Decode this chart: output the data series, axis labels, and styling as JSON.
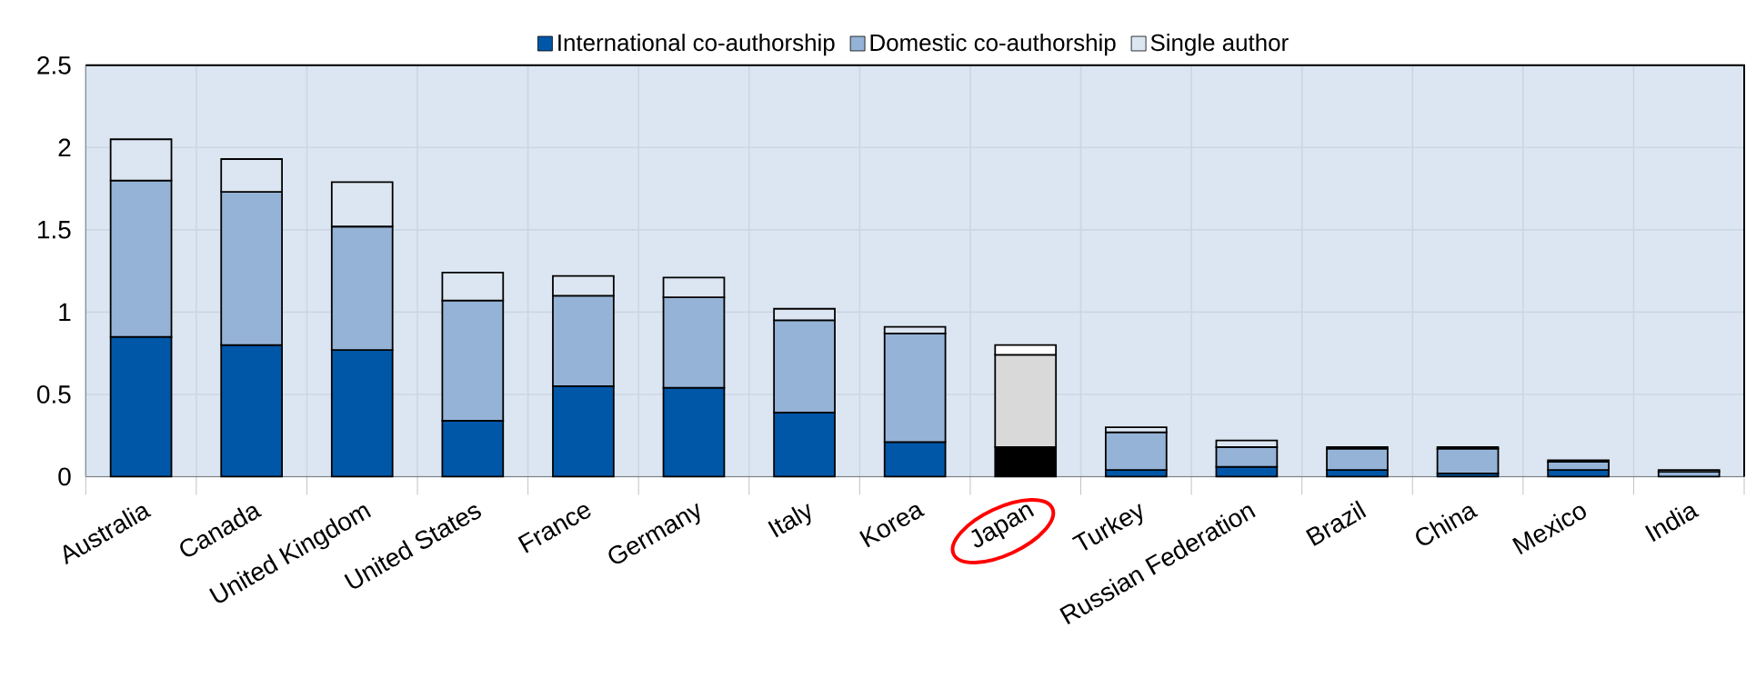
{
  "chart_data": {
    "type": "bar",
    "stacked": true,
    "categories": [
      "Australia",
      "Canada",
      "United Kingdom",
      "United States",
      "France",
      "Germany",
      "Italy",
      "Korea",
      "Japan",
      "Turkey",
      "Russian Federation",
      "Brazil",
      "China",
      "Mexico",
      "India"
    ],
    "series": [
      {
        "name": "International co-authorship",
        "color": "#0057a8",
        "colors": [
          "#0057a8",
          "#0057a8",
          "#0057a8",
          "#0057a8",
          "#0057a8",
          "#0057a8",
          "#0057a8",
          "#0057a8",
          "#000000",
          "#0057a8",
          "#0057a8",
          "#0057a8",
          "#0057a8",
          "#0057a8",
          "#0057a8"
        ],
        "values": [
          0.85,
          0.8,
          0.77,
          0.34,
          0.55,
          0.54,
          0.39,
          0.21,
          0.18,
          0.04,
          0.06,
          0.04,
          0.02,
          0.04,
          null
        ]
      },
      {
        "name": "Domestic co-authorship",
        "color": "#95b3d7",
        "colors": [
          "#95b3d7",
          "#95b3d7",
          "#95b3d7",
          "#95b3d7",
          "#95b3d7",
          "#95b3d7",
          "#95b3d7",
          "#95b3d7",
          "#d9d9d9",
          "#95b3d7",
          "#95b3d7",
          "#95b3d7",
          "#95b3d7",
          "#95b3d7",
          "#95b3d7"
        ],
        "values": [
          0.95,
          0.93,
          0.75,
          0.73,
          0.55,
          0.55,
          0.56,
          0.66,
          0.56,
          0.23,
          0.12,
          0.13,
          0.15,
          0.05,
          0.03
        ]
      },
      {
        "name": "Single author",
        "color": "#dce6f2",
        "colors": [
          "#dce6f2",
          "#dce6f2",
          "#dce6f2",
          "#dce6f2",
          "#dce6f2",
          "#dce6f2",
          "#dce6f2",
          "#dce6f2",
          "#ffffff",
          "#dce6f2",
          "#dce6f2",
          "#dce6f2",
          "#dce6f2",
          "#dce6f2",
          "#dce6f2"
        ],
        "values": [
          0.25,
          0.2,
          0.27,
          0.17,
          0.12,
          0.12,
          0.07,
          0.04,
          0.06,
          0.03,
          0.04,
          0.01,
          0.01,
          0.01,
          0.01
        ]
      }
    ],
    "ylim": [
      0,
      2.5
    ],
    "yticks": [
      0,
      0.5,
      1,
      1.5,
      2,
      2.5
    ],
    "grid": true,
    "legend": "top"
  }
}
